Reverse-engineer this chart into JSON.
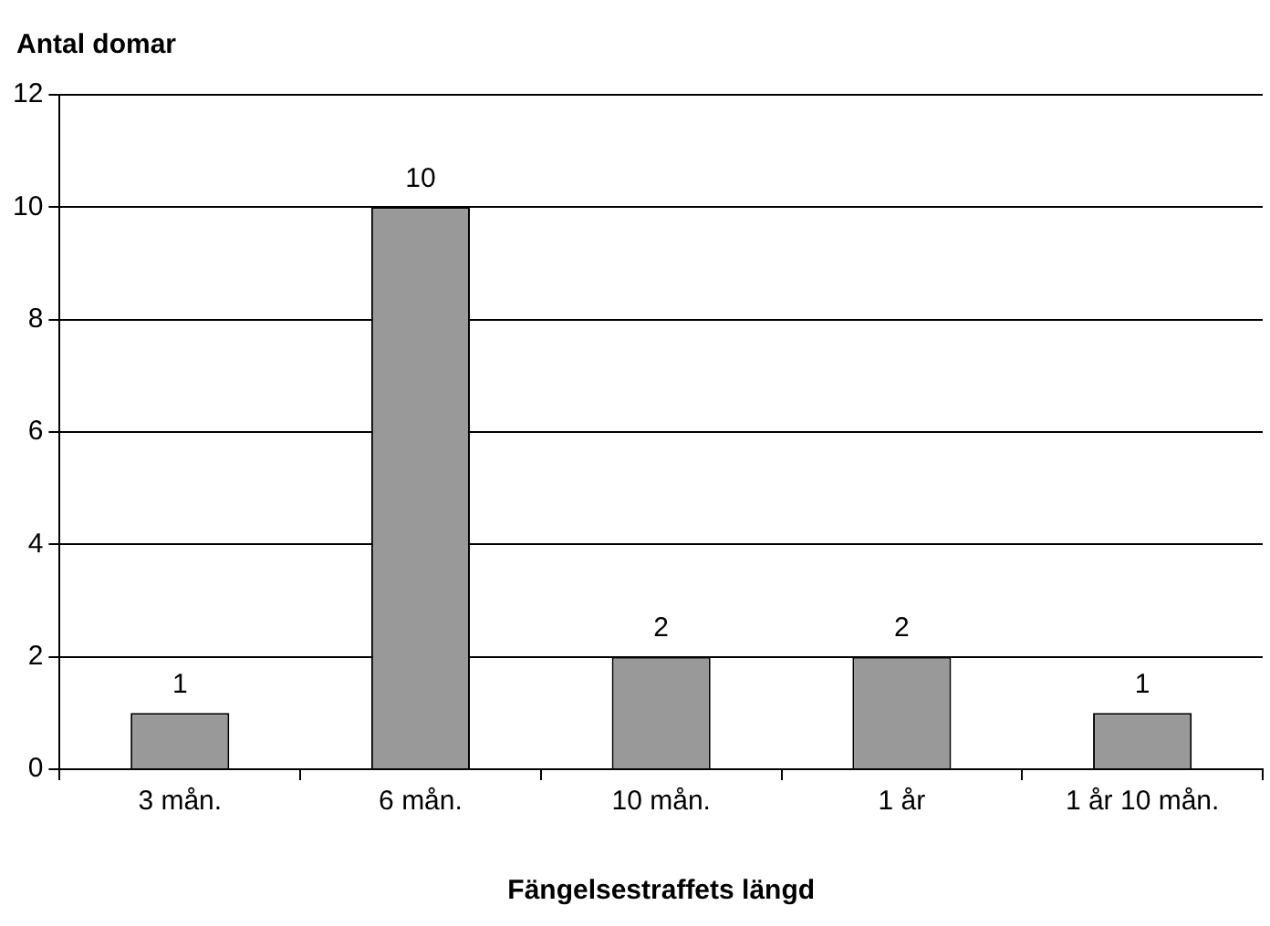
{
  "chart_data": {
    "type": "bar",
    "ylabel": "Antal domar",
    "xlabel": "Fängelsestraffets längd",
    "categories": [
      "3 mån.",
      "6 mån.",
      "10 mån.",
      "1 år",
      "1 år 10 mån."
    ],
    "values": [
      1,
      10,
      2,
      2,
      1
    ],
    "color": "#999999",
    "ylim": [
      0,
      12
    ],
    "yticks": [
      0,
      2,
      4,
      6,
      8,
      10,
      12
    ],
    "grid": "y",
    "data_labels": true
  }
}
